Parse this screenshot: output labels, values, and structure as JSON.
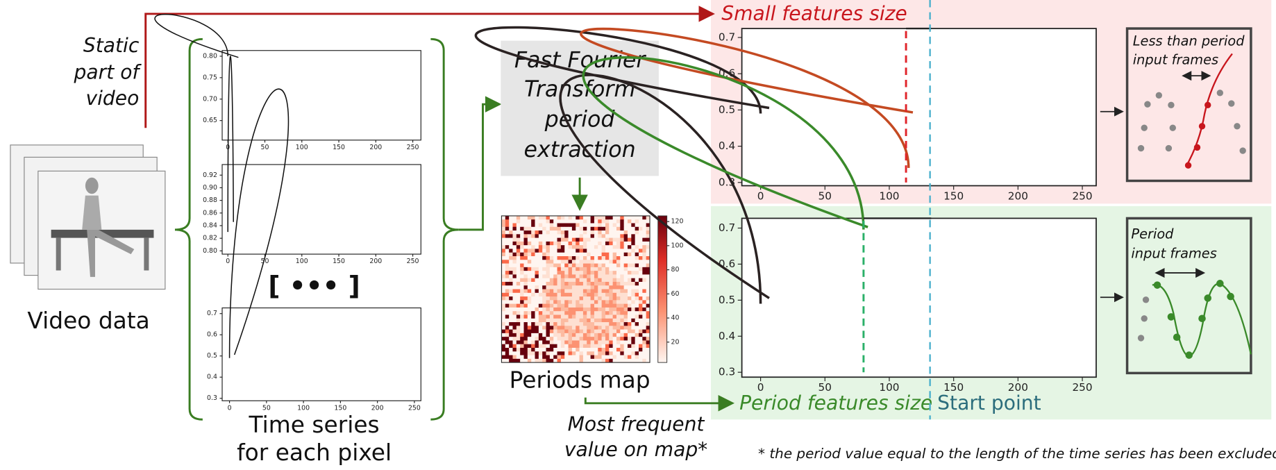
{
  "static_label": [
    "Static",
    "part of",
    "video"
  ],
  "video_label": "Video data",
  "time_series": {
    "plots": [
      {
        "xticks": [
          "0",
          "50",
          "100",
          "150",
          "200",
          "250"
        ],
        "yticks": [
          "0.65",
          "0.70",
          "0.75",
          "0.80"
        ]
      },
      {
        "xticks": [
          "0",
          "50",
          "100",
          "150",
          "200",
          "250"
        ],
        "yticks": [
          "0.80",
          "0.82",
          "0.84",
          "0.86",
          "0.88",
          "0.90",
          "0.92"
        ]
      },
      {
        "xticks": [
          "0",
          "50",
          "100",
          "150",
          "200",
          "250"
        ],
        "yticks": [
          "0.3",
          "0.4",
          "0.5",
          "0.6",
          "0.7"
        ]
      }
    ],
    "ellipsis": "[ ••• ]",
    "label": [
      "Time series",
      "for each pixel"
    ]
  },
  "fft": [
    "Fast Fourier",
    "Transform",
    "period",
    "extraction"
  ],
  "periods_map": {
    "colorbar_ticks": [
      "20",
      "40",
      "60",
      "80",
      "100",
      "120"
    ],
    "label": "Periods map"
  },
  "most_frequent": [
    "Most frequent",
    "value on map*"
  ],
  "small_features": {
    "title": "Small features size",
    "xticks": [
      "0",
      "50",
      "100",
      "150",
      "200",
      "250"
    ],
    "yticks": [
      "0.3",
      "0.4",
      "0.5",
      "0.6",
      "0.7"
    ],
    "inset": [
      "Less than period",
      "input frames"
    ]
  },
  "period_features": {
    "title": "Period features size",
    "xticks": [
      "0",
      "50",
      "100",
      "150",
      "200",
      "250"
    ],
    "yticks": [
      "0.3",
      "0.4",
      "0.5",
      "0.6",
      "0.7"
    ],
    "inset": [
      "Period",
      "input frames"
    ]
  },
  "start_point": "Start point",
  "footnote": "* the period value equal to the length of the time series has been excluded"
}
